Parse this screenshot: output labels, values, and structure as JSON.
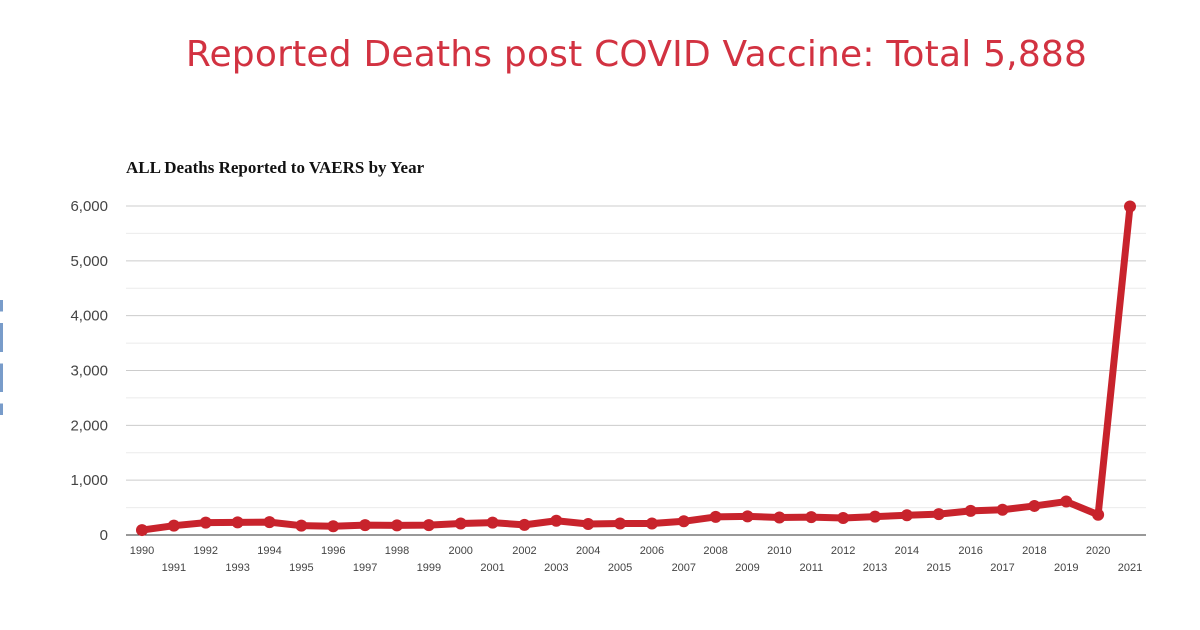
{
  "headline": "Reported Deaths post COVID Vaccine: Total 5,888",
  "chart_data": {
    "type": "line",
    "title": "ALL Deaths Reported to VAERS by Year",
    "xlabel": "",
    "ylabel": "",
    "ylim": [
      0,
      6000
    ],
    "yticks": [
      "0",
      "1,000",
      "2,000",
      "3,000",
      "4,000",
      "5,000",
      "6,000"
    ],
    "grid": true,
    "legend": "none",
    "color": "#c8232c",
    "categories": [
      "1990",
      "1991",
      "1992",
      "1993",
      "1994",
      "1995",
      "1996",
      "1997",
      "1998",
      "1999",
      "2000",
      "2001",
      "2002",
      "2003",
      "2004",
      "2005",
      "2006",
      "2007",
      "2008",
      "2009",
      "2010",
      "2011",
      "2012",
      "2013",
      "2014",
      "2015",
      "2016",
      "2017",
      "2018",
      "2019",
      "2020",
      "2021"
    ],
    "series": [
      {
        "values": [
          90,
          170,
          225,
          230,
          235,
          170,
          160,
          180,
          175,
          180,
          210,
          225,
          185,
          260,
          200,
          210,
          210,
          250,
          330,
          340,
          320,
          325,
          310,
          335,
          360,
          380,
          440,
          460,
          530,
          610,
          370,
          5990
        ]
      }
    ]
  }
}
